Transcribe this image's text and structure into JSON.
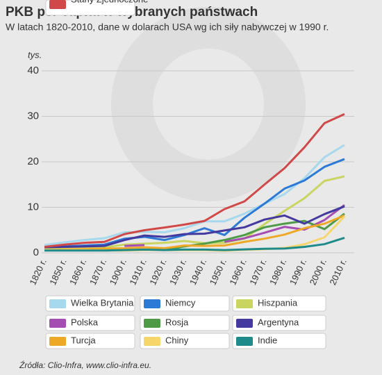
{
  "chart_data": {
    "type": "line",
    "title": "PKB per capita w wybranych państwach",
    "subtitle": "W latach 1820-2010, dane w dolarach USA wg ich siły nabywczej w 1990 r.",
    "y_unit": "tys.",
    "source": "Źródła: Clio-Infra, www.clio-infra.eu.",
    "categories": [
      "1820 r.",
      "1850 r.",
      "1860 r.",
      "1870 r.",
      "1900 r.",
      "1910 r.",
      "1920 r.",
      "1930 r.",
      "1940 r.",
      "1950 r.",
      "1960 r.",
      "1970 r.",
      "1980 r.",
      "1990 r.",
      "2000 r.",
      "2010 r."
    ],
    "ylim": [
      0,
      40
    ],
    "yticks": [
      0,
      10,
      20,
      30,
      40
    ],
    "grid": true,
    "series": [
      {
        "name": "Wielka Brytania",
        "color": "#a6d8ee",
        "values": [
          1.7,
          2.3,
          2.8,
          3.2,
          4.5,
          4.6,
          4.5,
          5.4,
          6.9,
          6.9,
          8.6,
          10.8,
          12.9,
          16.4,
          21.0,
          23.7
        ]
      },
      {
        "name": "Niemcy",
        "color": "#2d7ad6",
        "values": [
          1.1,
          1.4,
          1.6,
          1.8,
          3.1,
          3.5,
          2.8,
          3.9,
          5.4,
          3.9,
          7.7,
          10.8,
          14.1,
          15.9,
          18.9,
          20.6
        ]
      },
      {
        "name": "Hiszpania",
        "color": "#c9d560",
        "values": [
          1.0,
          1.1,
          1.2,
          1.2,
          1.8,
          2.0,
          2.2,
          2.6,
          2.1,
          2.2,
          3.1,
          6.3,
          9.2,
          12.0,
          15.8,
          16.8
        ]
      },
      {
        "name": "Polska",
        "color": "#a54db3",
        "values": [
          null,
          null,
          null,
          null,
          1.5,
          1.7,
          null,
          null,
          null,
          2.4,
          3.2,
          4.4,
          5.7,
          5.1,
          7.2,
          10.5
        ]
      },
      {
        "name": "Rosja",
        "color": "#4e9a47",
        "values": [
          null,
          null,
          null,
          null,
          null,
          null,
          0.6,
          1.4,
          2.0,
          2.8,
          3.9,
          5.6,
          6.4,
          7.0,
          5.2,
          8.6
        ]
      },
      {
        "name": "Argentyna",
        "color": "#43399f",
        "values": [
          1.2,
          1.3,
          1.4,
          1.5,
          2.8,
          3.8,
          3.5,
          4.1,
          4.2,
          4.9,
          5.6,
          7.3,
          8.2,
          6.4,
          8.5,
          10.2
        ]
      },
      {
        "name": "Turcja",
        "color": "#eea828",
        "values": [
          0.6,
          0.7,
          0.8,
          0.9,
          1.0,
          1.2,
          1.0,
          1.6,
          1.5,
          1.6,
          2.4,
          3.1,
          4.0,
          5.4,
          6.4,
          8.2
        ]
      },
      {
        "name": "Chiny",
        "color": "#f6d66b",
        "values": [
          0.6,
          0.6,
          0.6,
          0.5,
          0.5,
          0.6,
          0.6,
          0.6,
          0.6,
          0.45,
          0.66,
          0.78,
          1.06,
          1.87,
          3.4,
          8.0
        ]
      },
      {
        "name": "Indie",
        "color": "#1f8a8a",
        "values": [
          0.5,
          0.5,
          0.5,
          0.5,
          0.6,
          0.7,
          0.6,
          0.7,
          0.7,
          0.6,
          0.75,
          0.87,
          0.94,
          1.3,
          1.9,
          3.3
        ]
      },
      {
        "name": "Stany Zjednoczone",
        "color": "#d04848",
        "values": [
          1.3,
          1.8,
          2.2,
          2.4,
          4.1,
          4.96,
          5.55,
          6.2,
          7.0,
          9.6,
          11.3,
          15.0,
          18.6,
          23.2,
          28.5,
          30.5
        ]
      }
    ]
  }
}
